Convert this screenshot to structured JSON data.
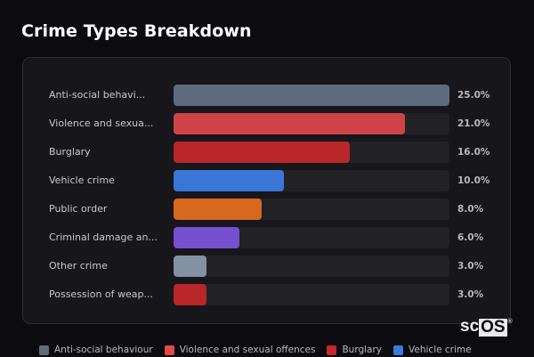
{
  "header": {
    "title": "Crime Types Breakdown"
  },
  "rows": [
    {
      "label": "Anti-social behavi...",
      "value_label": "25.0%",
      "value": 25.0,
      "color": "#5e6b7c"
    },
    {
      "label": "Violence and sexua...",
      "value_label": "21.0%",
      "value": 21.0,
      "color": "#cf4346"
    },
    {
      "label": "Burglary",
      "value_label": "16.0%",
      "value": 16.0,
      "color": "#b92629"
    },
    {
      "label": "Vehicle crime",
      "value_label": "10.0%",
      "value": 10.0,
      "color": "#3a76d6"
    },
    {
      "label": "Public order",
      "value_label": "8.0%",
      "value": 8.0,
      "color": "#d7681d"
    },
    {
      "label": "Criminal damage an...",
      "value_label": "6.0%",
      "value": 6.0,
      "color": "#7650d0"
    },
    {
      "label": "Other crime",
      "value_label": "3.0%",
      "value": 3.0,
      "color": "#8391a3"
    },
    {
      "label": "Possession of weap...",
      "value_label": "3.0%",
      "value": 3.0,
      "color": "#b92629"
    }
  ],
  "legend": [
    {
      "label": "Anti-social behaviour",
      "color": "#5e6b7c"
    },
    {
      "label": "Violence and sexual offences",
      "color": "#e04a4e"
    },
    {
      "label": "Burglary",
      "color": "#c8282b"
    },
    {
      "label": "Vehicle crime",
      "color": "#3a7be0"
    }
  ],
  "watermark": {
    "part_a": "sc",
    "part_b": "OS",
    "reg": "®"
  },
  "chart_data": {
    "type": "bar",
    "orientation": "horizontal",
    "title": "Crime Types Breakdown",
    "categories": [
      "Anti-social behaviour",
      "Violence and sexual offences",
      "Burglary",
      "Vehicle crime",
      "Public order",
      "Criminal damage an...",
      "Other crime",
      "Possession of weap..."
    ],
    "values": [
      25.0,
      21.0,
      16.0,
      10.0,
      8.0,
      6.0,
      3.0,
      3.0
    ],
    "unit": "%",
    "xlabel": "",
    "ylabel": "",
    "xlim": [
      0,
      25
    ],
    "grid": false,
    "legend_position": "bottom",
    "colors": [
      "#5e6b7c",
      "#cf4346",
      "#b92629",
      "#3a76d6",
      "#d7681d",
      "#7650d0",
      "#8391a3",
      "#b92629"
    ]
  }
}
